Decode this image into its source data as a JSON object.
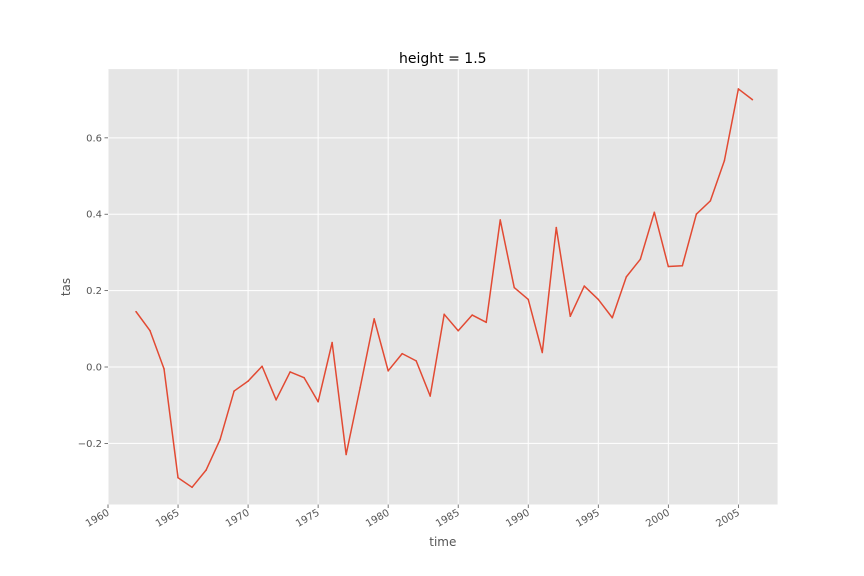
{
  "chart_data": {
    "type": "line",
    "title": "height = 1.5",
    "xlabel": "time",
    "ylabel": "tas",
    "xlim": [
      1960,
      2007.8
    ],
    "ylim": [
      -0.36,
      0.78
    ],
    "grid": true,
    "x_ticks": [
      1960,
      1965,
      1970,
      1975,
      1980,
      1985,
      1990,
      1995,
      2000,
      2005
    ],
    "x_tick_labels": [
      "1960",
      "1965",
      "1970",
      "1975",
      "1980",
      "1985",
      "1990",
      "1995",
      "2000",
      "2005"
    ],
    "y_ticks": [
      -0.2,
      0.0,
      0.2,
      0.4,
      0.6
    ],
    "y_tick_labels": [
      "−0.2",
      "0.0",
      "0.2",
      "0.4",
      "0.6"
    ],
    "colors": {
      "line": "#E24A33",
      "plot_bg": "#E5E5E5",
      "grid": "#FFFFFF",
      "text": "#555555"
    },
    "series": [
      {
        "x": [
          1962,
          1963,
          1964,
          1965,
          1966,
          1967,
          1968,
          1969,
          1970,
          1971,
          1972,
          1973,
          1974,
          1975,
          1976,
          1977,
          1978,
          1979,
          1980,
          1981,
          1982,
          1983,
          1984,
          1985,
          1986,
          1987,
          1988,
          1989,
          1990,
          1991,
          1992,
          1993,
          1994,
          1995,
          1996,
          1997,
          1998,
          1999,
          2000,
          2001,
          2002,
          2003,
          2004,
          2005,
          2006
        ],
        "values": [
          0.145,
          0.095,
          -0.005,
          -0.29,
          -0.315,
          -0.27,
          -0.19,
          -0.063,
          -0.037,
          0.002,
          -0.086,
          -0.013,
          -0.028,
          -0.091,
          0.064,
          -0.229,
          -0.054,
          0.126,
          -0.01,
          0.035,
          0.016,
          -0.076,
          0.138,
          0.095,
          0.136,
          0.117,
          0.385,
          0.208,
          0.177,
          0.038,
          0.365,
          0.133,
          0.212,
          0.177,
          0.129,
          0.236,
          0.282,
          0.405,
          0.263,
          0.265,
          0.4,
          0.435,
          0.54,
          0.728,
          0.7
        ]
      }
    ]
  }
}
